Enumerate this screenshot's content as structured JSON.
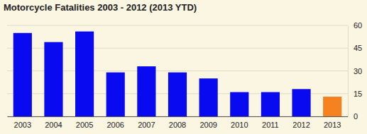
{
  "chart_data": {
    "type": "bar",
    "title": "Motorcycle Fatalities 2003 - 2012 (2013 YTD)",
    "categories": [
      "2003",
      "2004",
      "2005",
      "2006",
      "2007",
      "2008",
      "2009",
      "2010",
      "2011",
      "2012",
      "2013"
    ],
    "values": [
      55,
      49,
      56,
      29,
      33,
      29,
      25,
      16,
      16,
      18,
      13
    ],
    "colors": [
      "#0a0af0",
      "#0a0af0",
      "#0a0af0",
      "#0a0af0",
      "#0a0af0",
      "#0a0af0",
      "#0a0af0",
      "#0a0af0",
      "#0a0af0",
      "#0a0af0",
      "#f5821f"
    ],
    "ylim": [
      0,
      60
    ],
    "yticks": [
      0,
      15,
      30,
      45,
      60
    ],
    "grid": true
  }
}
